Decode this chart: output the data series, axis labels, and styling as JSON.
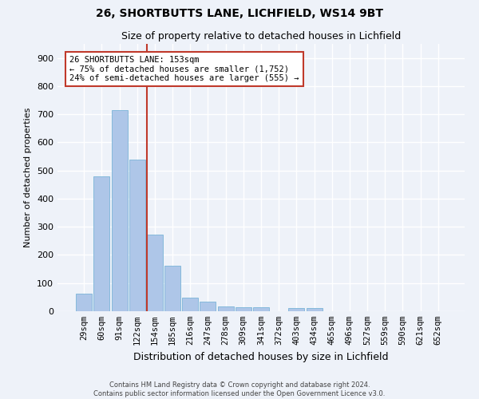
{
  "title1": "26, SHORTBUTTS LANE, LICHFIELD, WS14 9BT",
  "title2": "Size of property relative to detached houses in Lichfield",
  "xlabel": "Distribution of detached houses by size in Lichfield",
  "ylabel": "Number of detached properties",
  "categories": [
    "29sqm",
    "60sqm",
    "91sqm",
    "122sqm",
    "154sqm",
    "185sqm",
    "216sqm",
    "247sqm",
    "278sqm",
    "309sqm",
    "341sqm",
    "372sqm",
    "403sqm",
    "434sqm",
    "465sqm",
    "496sqm",
    "527sqm",
    "559sqm",
    "590sqm",
    "621sqm",
    "652sqm"
  ],
  "values": [
    62,
    480,
    714,
    538,
    272,
    163,
    48,
    35,
    18,
    13,
    13,
    0,
    10,
    10,
    0,
    0,
    0,
    0,
    0,
    0,
    0
  ],
  "bar_color": "#aec6e8",
  "bar_edge_color": "#7ab4d8",
  "vline_color": "#c0392b",
  "vline_pos": 3.57,
  "annotation_text": "26 SHORTBUTTS LANE: 153sqm\n← 75% of detached houses are smaller (1,752)\n24% of semi-detached houses are larger (555) →",
  "annotation_box_color": "#ffffff",
  "annotation_box_edge": "#c0392b",
  "footer1": "Contains HM Land Registry data © Crown copyright and database right 2024.",
  "footer2": "Contains public sector information licensed under the Open Government Licence v3.0.",
  "bg_color": "#eef2f9",
  "grid_color": "#ffffff",
  "ylim": [
    0,
    950
  ],
  "yticks": [
    0,
    100,
    200,
    300,
    400,
    500,
    600,
    700,
    800,
    900
  ],
  "title1_fontsize": 10,
  "title2_fontsize": 9,
  "ylabel_fontsize": 8,
  "xlabel_fontsize": 9,
  "tick_fontsize": 7.5
}
